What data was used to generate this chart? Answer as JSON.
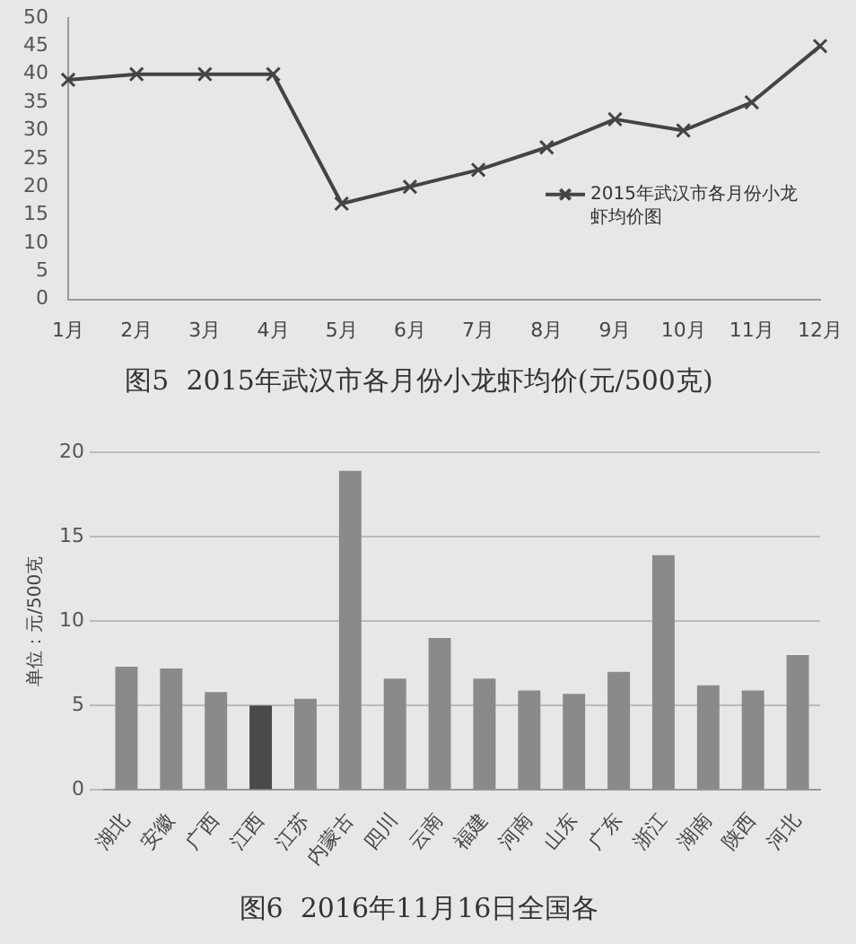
{
  "chart_data": [
    {
      "type": "line",
      "title": "图5  2015年武汉市各月份小龙虾均价(元/500克)",
      "categories": [
        "1月",
        "2月",
        "3月",
        "4月",
        "5月",
        "6月",
        "7月",
        "8月",
        "9月",
        "10月",
        "11月",
        "12月"
      ],
      "series": [
        {
          "name": "2015年武汉市各月份小龙虾均价图",
          "color": "#444444",
          "values": [
            39,
            40,
            40,
            40,
            17,
            20,
            23,
            27,
            32,
            30,
            35,
            45
          ]
        }
      ],
      "ylim": [
        0,
        50
      ],
      "yticks": [
        0,
        5,
        10,
        15,
        20,
        25,
        30,
        35,
        40,
        45,
        50
      ],
      "grid": false,
      "legend": "right",
      "marker": "cross",
      "line_style": "solid"
    },
    {
      "type": "bar",
      "title": "图6  2016年11月16日全国各",
      "ylabel": "单位：元/500克",
      "categories": [
        "湖北",
        "安徽",
        "广西",
        "江西",
        "江苏",
        "内蒙古",
        "四川",
        "云南",
        "福建",
        "河南",
        "山东",
        "广东",
        "浙江",
        "湖南",
        "陕西",
        "河北"
      ],
      "values": [
        7.3,
        7.2,
        5.8,
        5.0,
        5.4,
        18.9,
        6.6,
        9.0,
        6.6,
        5.9,
        5.7,
        7.0,
        13.9,
        6.2,
        5.9,
        8.0
      ],
      "colors": [
        "#8a8a8a",
        "#8a8a8a",
        "#8a8a8a",
        "#4a4a4a",
        "#8a8a8a",
        "#8a8a8a",
        "#8a8a8a",
        "#8a8a8a",
        "#8a8a8a",
        "#8a8a8a",
        "#8a8a8a",
        "#8a8a8a",
        "#8a8a8a",
        "#8a8a8a",
        "#8a8a8a",
        "#8a8a8a"
      ],
      "ylim": [
        0,
        20
      ],
      "yticks": [
        0,
        5,
        10,
        15,
        20
      ],
      "grid": "y",
      "legend": false
    }
  ]
}
